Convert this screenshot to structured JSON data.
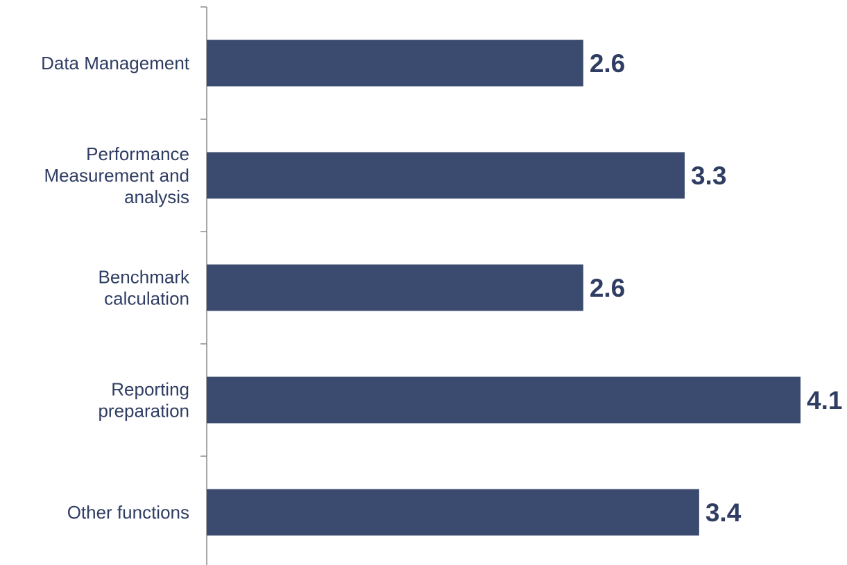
{
  "chart_data": {
    "type": "bar",
    "orientation": "horizontal",
    "categories": [
      [
        "Data Management"
      ],
      [
        "Performance",
        "Measurement and",
        "analysis"
      ],
      [
        "Benchmark",
        "calculation"
      ],
      [
        "Reporting",
        "preparation"
      ],
      [
        "Other functions"
      ]
    ],
    "values": [
      2.6,
      3.3,
      2.6,
      4.1,
      3.4
    ],
    "data_labels": [
      "2.6",
      "3.3",
      "2.6",
      "4.1",
      "3.4"
    ],
    "title": "",
    "xlabel": "",
    "ylabel": "",
    "xlim": [
      0,
      4.1
    ],
    "grid": false,
    "legend": "none",
    "bar_color": "#3b4a6f",
    "label_color": "#2f3d63",
    "axis_color": "#8c8c8c"
  }
}
